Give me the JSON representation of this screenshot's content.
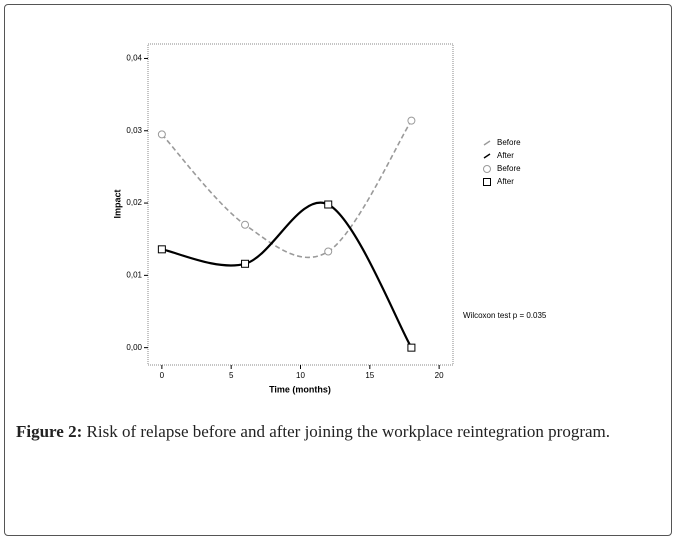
{
  "chart_data": {
    "type": "line",
    "x_label": "Time (months)",
    "y_label": "Impact",
    "x": [
      0,
      6,
      12,
      18
    ],
    "series": [
      {
        "name": "Before",
        "color": "#9a9a9a",
        "line_style": "dashed",
        "marker": "circle",
        "values": [
          0.0295,
          0.017,
          0.0133,
          0.0314
        ]
      },
      {
        "name": "After",
        "color": "#000000",
        "line_style": "solid",
        "marker": "square",
        "values": [
          0.0136,
          0.0116,
          0.0198,
          0.0
        ]
      }
    ],
    "xlim": [
      -1,
      21
    ],
    "xticks": [
      0,
      5,
      10,
      15,
      20
    ],
    "ylim": [
      -0.0024,
      0.042
    ],
    "yticks": [
      {
        "value": 0.0,
        "label": "0,00"
      },
      {
        "value": 0.01,
        "label": "0,01"
      },
      {
        "value": 0.02,
        "label": "0,02"
      },
      {
        "value": 0.03,
        "label": "0,03"
      },
      {
        "value": 0.04,
        "label": "0,04"
      }
    ],
    "annotation": "Wilcoxon test p = 0.035"
  },
  "caption": {
    "label": "Figure 2:",
    "text": "Risk of relapse before and after joining the workplace reintegration program."
  }
}
